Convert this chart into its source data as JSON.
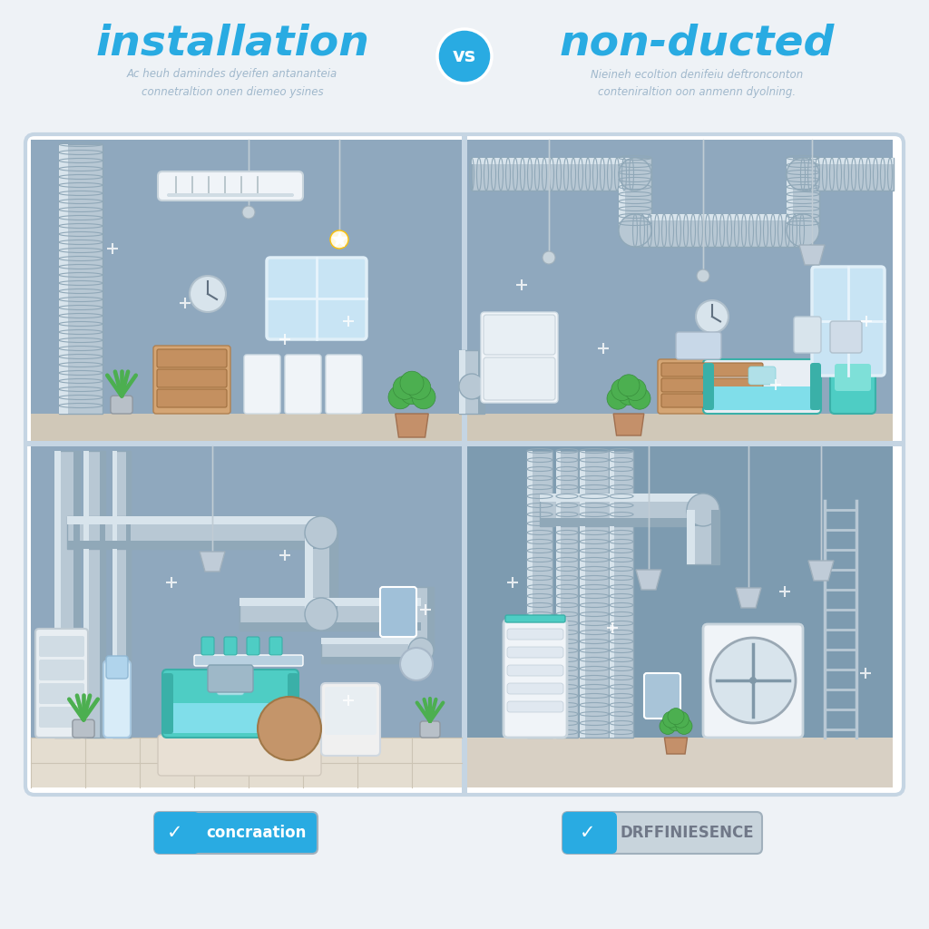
{
  "bg_color": "#eef2f6",
  "wall_color": "#8fa8be",
  "wall_color2": "#7d9bb0",
  "floor_color_light": "#e8e0d0",
  "floor_color_tile": "#ddd5c5",
  "room_border": "#c5d5e3",
  "panel_bg": "#ffffff",
  "pipe_silver": "#b8c8d4",
  "pipe_light": "#d8e4ec",
  "pipe_dark": "#90a8b8",
  "pipe_white_edge": "#e8f0f6",
  "title_left": "installation",
  "title_right": "non-ducted",
  "vs_text": "vs",
  "vs_bg": "#29abe2",
  "subtitle_left": "Ac heuh damindes dyeifen antananteia\nconnetraltion onen diemeo ysines",
  "subtitle_right": "Nieineh ecoltion denifeiu deftronconton\nconteniraltion oon anmenn dyolning.",
  "btn_left_text": "concraation",
  "btn_right_text": "DRFFINIESENCE",
  "btn_blue": "#29abe2",
  "btn_gray": "#c8d4dc",
  "checkmark": "✓",
  "title_color": "#29abe2",
  "subtitle_color": "#a0b8cc",
  "divider_color": "#c5d5e3",
  "white": "#ffffff",
  "teal": "#4ecdc4",
  "green_leaf": "#4caf50",
  "green_dark": "#388e3c",
  "wood_light": "#d4a574",
  "wood_dark": "#b08050",
  "pendant_gray": "#c0ccd4",
  "sparkle_color": "#d8e8f0"
}
